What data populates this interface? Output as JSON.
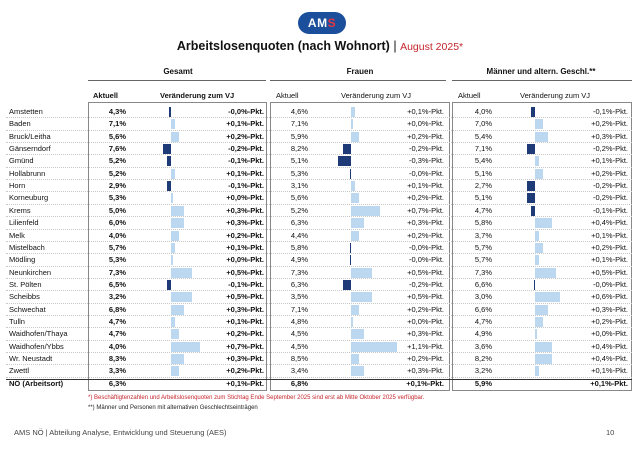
{
  "logo": {
    "text_a": "AM",
    "text_b": "S"
  },
  "header": {
    "title": "Arbeitslosenquoten (nach Wohnort)",
    "separator": "|",
    "date": "August 2025*"
  },
  "groups": {
    "gesamt": "Gesamt",
    "frauen": "Frauen",
    "maenner": "Männer und altern. Geschl.**"
  },
  "columns": {
    "aktuell": "Aktuell",
    "veraenderung": "Veränderung zum VJ"
  },
  "colors": {
    "positive_bar": "#bcd8f0",
    "negative_bar": "#1f3b77",
    "footnote": "#c4262e",
    "brand": "#1b4f9c"
  },
  "rows": [
    {
      "name": "Amstetten",
      "g_val": "4,3%",
      "g_chg": "-0,0%-Pkt.",
      "g_d": -0.05,
      "f_val": "4,6%",
      "f_chg": "+0,1%-Pkt.",
      "f_d": 0.1,
      "m_val": "4,0%",
      "m_chg": "-0,1%-Pkt.",
      "m_d": -0.1
    },
    {
      "name": "Baden",
      "g_val": "7,1%",
      "g_chg": "+0,1%-Pkt.",
      "g_d": 0.1,
      "f_val": "7,1%",
      "f_chg": "+0,0%-Pkt.",
      "f_d": 0.05,
      "m_val": "7,0%",
      "m_chg": "+0,2%-Pkt.",
      "m_d": 0.2
    },
    {
      "name": "Bruck/Leitha",
      "g_val": "5,6%",
      "g_chg": "+0,2%-Pkt.",
      "g_d": 0.2,
      "f_val": "5,9%",
      "f_chg": "+0,2%-Pkt.",
      "f_d": 0.2,
      "m_val": "5,4%",
      "m_chg": "+0,3%-Pkt.",
      "m_d": 0.3
    },
    {
      "name": "Gänserndorf",
      "g_val": "7,6%",
      "g_chg": "-0,2%-Pkt.",
      "g_d": -0.2,
      "f_val": "8,2%",
      "f_chg": "-0,2%-Pkt.",
      "f_d": -0.2,
      "m_val": "7,1%",
      "m_chg": "-0,2%-Pkt.",
      "m_d": -0.2
    },
    {
      "name": "Gmünd",
      "g_val": "5,2%",
      "g_chg": "-0,1%-Pkt.",
      "g_d": -0.1,
      "f_val": "5,1%",
      "f_chg": "-0,3%-Pkt.",
      "f_d": -0.3,
      "m_val": "5,4%",
      "m_chg": "+0,1%-Pkt.",
      "m_d": 0.1
    },
    {
      "name": "Hollabrunn",
      "g_val": "5,2%",
      "g_chg": "+0,1%-Pkt.",
      "g_d": 0.1,
      "f_val": "5,3%",
      "f_chg": "-0,0%-Pkt.",
      "f_d": -0.02,
      "m_val": "5,1%",
      "m_chg": "+0,2%-Pkt.",
      "m_d": 0.2
    },
    {
      "name": "Horn",
      "g_val": "2,9%",
      "g_chg": "-0,1%-Pkt.",
      "g_d": -0.1,
      "f_val": "3,1%",
      "f_chg": "+0,1%-Pkt.",
      "f_d": 0.1,
      "m_val": "2,7%",
      "m_chg": "-0,2%-Pkt.",
      "m_d": -0.2
    },
    {
      "name": "Korneuburg",
      "g_val": "5,3%",
      "g_chg": "+0,0%-Pkt.",
      "g_d": 0.05,
      "f_val": "5,6%",
      "f_chg": "+0,2%-Pkt.",
      "f_d": 0.2,
      "m_val": "5,1%",
      "m_chg": "-0,2%-Pkt.",
      "m_d": -0.2
    },
    {
      "name": "Krems",
      "g_val": "5,0%",
      "g_chg": "+0,3%-Pkt.",
      "g_d": 0.3,
      "f_val": "5,2%",
      "f_chg": "+0,7%-Pkt.",
      "f_d": 0.7,
      "m_val": "4,7%",
      "m_chg": "-0,1%-Pkt.",
      "m_d": -0.1
    },
    {
      "name": "Lilienfeld",
      "g_val": "6,0%",
      "g_chg": "+0,3%-Pkt.",
      "g_d": 0.3,
      "f_val": "6,3%",
      "f_chg": "+0,3%-Pkt.",
      "f_d": 0.3,
      "m_val": "5,8%",
      "m_chg": "+0,4%-Pkt.",
      "m_d": 0.4
    },
    {
      "name": "Melk",
      "g_val": "4,0%",
      "g_chg": "+0,2%-Pkt.",
      "g_d": 0.2,
      "f_val": "4,4%",
      "f_chg": "+0,2%-Pkt.",
      "f_d": 0.2,
      "m_val": "3,7%",
      "m_chg": "+0,1%-Pkt.",
      "m_d": 0.1
    },
    {
      "name": "Mistelbach",
      "g_val": "5,7%",
      "g_chg": "+0,1%-Pkt.",
      "g_d": 0.1,
      "f_val": "5,8%",
      "f_chg": "-0,0%-Pkt.",
      "f_d": -0.02,
      "m_val": "5,7%",
      "m_chg": "+0,2%-Pkt.",
      "m_d": 0.2
    },
    {
      "name": "Mödling",
      "g_val": "5,3%",
      "g_chg": "+0,0%-Pkt.",
      "g_d": 0.05,
      "f_val": "4,9%",
      "f_chg": "-0,0%-Pkt.",
      "f_d": -0.02,
      "m_val": "5,7%",
      "m_chg": "+0,1%-Pkt.",
      "m_d": 0.1
    },
    {
      "name": "Neunkirchen",
      "g_val": "7,3%",
      "g_chg": "+0,5%-Pkt.",
      "g_d": 0.5,
      "f_val": "7,3%",
      "f_chg": "+0,5%-Pkt.",
      "f_d": 0.5,
      "m_val": "7,3%",
      "m_chg": "+0,5%-Pkt.",
      "m_d": 0.5
    },
    {
      "name": "St. Pölten",
      "g_val": "6,5%",
      "g_chg": "-0,1%-Pkt.",
      "g_d": -0.1,
      "f_val": "6,3%",
      "f_chg": "-0,2%-Pkt.",
      "f_d": -0.2,
      "m_val": "6,6%",
      "m_chg": "-0,0%-Pkt.",
      "m_d": -0.02
    },
    {
      "name": "Scheibbs",
      "g_val": "3,2%",
      "g_chg": "+0,5%-Pkt.",
      "g_d": 0.5,
      "f_val": "3,5%",
      "f_chg": "+0,5%-Pkt.",
      "f_d": 0.5,
      "m_val": "3,0%",
      "m_chg": "+0,6%-Pkt.",
      "m_d": 0.6
    },
    {
      "name": "Schwechat",
      "g_val": "6,8%",
      "g_chg": "+0,3%-Pkt.",
      "g_d": 0.3,
      "f_val": "7,1%",
      "f_chg": "+0,2%-Pkt.",
      "f_d": 0.2,
      "m_val": "6,6%",
      "m_chg": "+0,3%-Pkt.",
      "m_d": 0.3
    },
    {
      "name": "Tulln",
      "g_val": "4,7%",
      "g_chg": "+0,1%-Pkt.",
      "g_d": 0.1,
      "f_val": "4,8%",
      "f_chg": "+0,0%-Pkt.",
      "f_d": 0.05,
      "m_val": "4,7%",
      "m_chg": "+0,2%-Pkt.",
      "m_d": 0.2
    },
    {
      "name": "Waidhofen/Thaya",
      "g_val": "4,7%",
      "g_chg": "+0,2%-Pkt.",
      "g_d": 0.2,
      "f_val": "4,5%",
      "f_chg": "+0,3%-Pkt.",
      "f_d": 0.3,
      "m_val": "4,9%",
      "m_chg": "+0,0%-Pkt.",
      "m_d": 0.05
    },
    {
      "name": "Waidhofen/Ybbs",
      "g_val": "4,0%",
      "g_chg": "+0,7%-Pkt.",
      "g_d": 0.7,
      "f_val": "4,5%",
      "f_chg": "+1,1%-Pkt.",
      "f_d": 1.1,
      "m_val": "3,6%",
      "m_chg": "+0,4%-Pkt.",
      "m_d": 0.4
    },
    {
      "name": "Wr. Neustadt",
      "g_val": "8,3%",
      "g_chg": "+0,3%-Pkt.",
      "g_d": 0.3,
      "f_val": "8,5%",
      "f_chg": "+0,2%-Pkt.",
      "f_d": 0.2,
      "m_val": "8,2%",
      "m_chg": "+0,4%-Pkt.",
      "m_d": 0.4
    },
    {
      "name": "Zwettl",
      "g_val": "3,3%",
      "g_chg": "+0,2%-Pkt.",
      "g_d": 0.2,
      "f_val": "3,4%",
      "f_chg": "+0,3%-Pkt.",
      "f_d": 0.3,
      "m_val": "3,2%",
      "m_chg": "+0,1%-Pkt.",
      "m_d": 0.1
    },
    {
      "name": "NÖ (Arbeitsort)",
      "g_val": "6,3%",
      "g_chg": "+0,1%-Pkt.",
      "g_d": 0,
      "f_val": "6,8%",
      "f_chg": "+0,1%-Pkt.",
      "f_d": 0,
      "m_val": "5,9%",
      "m_chg": "+0,1%-Pkt.",
      "m_d": 0,
      "total": true
    }
  ],
  "footnotes": {
    "f1": "*) Beschäftigtenzahlen und Arbeitslosenquoten zum Stichtag Ende September 2025 sind erst ab Mitte Oktober 2025 verfügbar.",
    "f2": "**) Männer und Personen mit alternativen Geschlechtseinträgen"
  },
  "footer": {
    "text": "AMS NÖ | Abteilung Analyse, Entwicklung und Steuerung (AES)",
    "page": "10"
  }
}
